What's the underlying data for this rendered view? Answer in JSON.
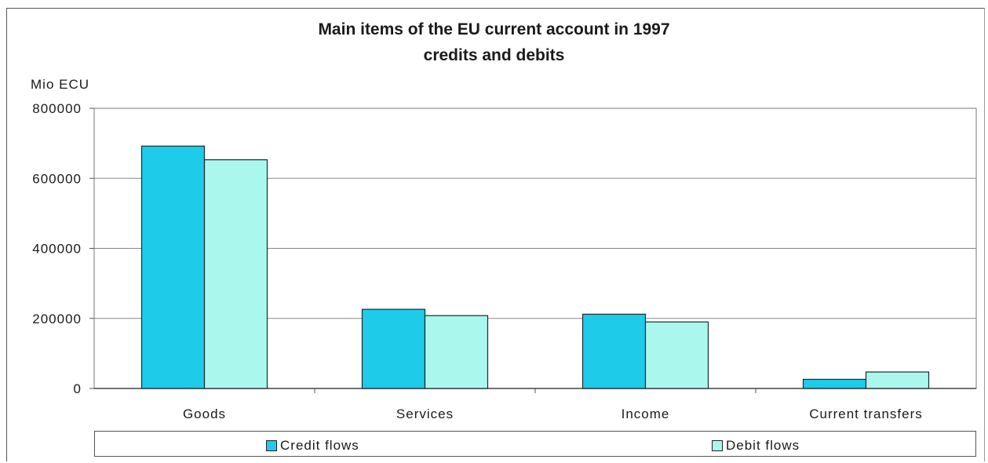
{
  "chart_data": {
    "type": "bar",
    "title": "Main items of the EU current account in 1997",
    "subtitle": "credits and debits",
    "ylabel": "Mio ECU",
    "xlabel": "",
    "categories": [
      "Goods",
      "Services",
      "Income",
      "Current transfers"
    ],
    "series": [
      {
        "name": "Credit flows",
        "values": [
          692000,
          226000,
          212000,
          26000
        ],
        "color": "#1ecbe8"
      },
      {
        "name": "Debit flows",
        "values": [
          653000,
          208000,
          190000,
          47000
        ],
        "color": "#aaf7ee"
      }
    ],
    "ylim": [
      0,
      800000
    ],
    "yticks": [
      "0",
      "200000",
      "400000",
      "600000",
      "800000"
    ],
    "grid": true,
    "legend": "bottom"
  }
}
